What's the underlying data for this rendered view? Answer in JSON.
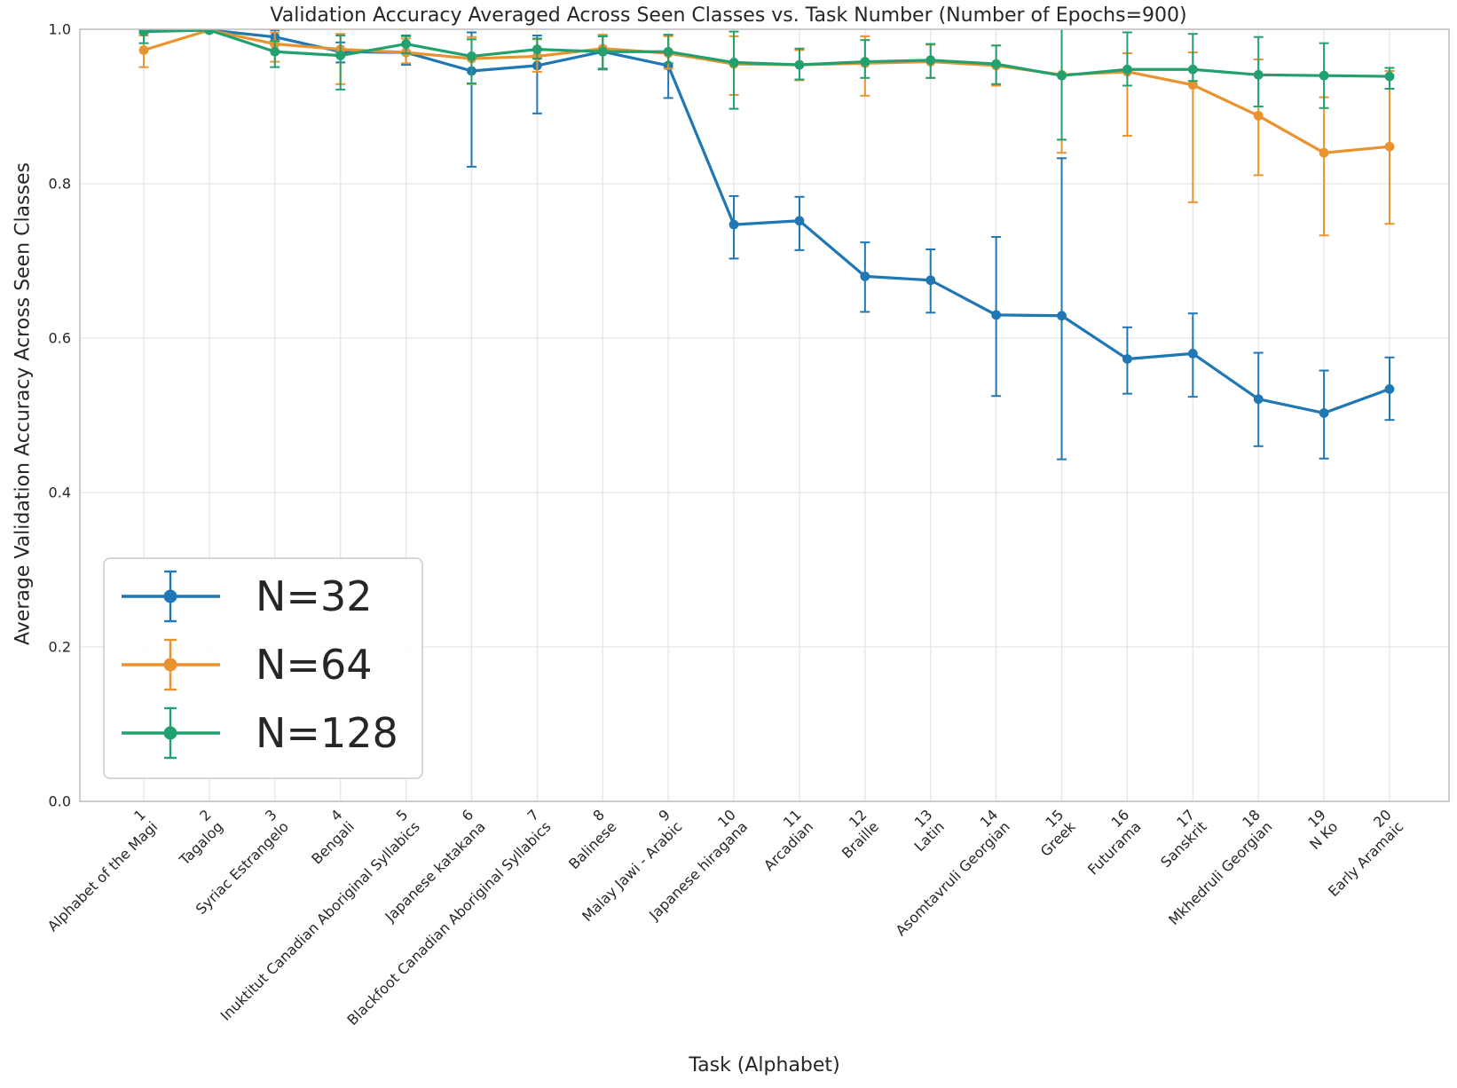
{
  "chart_data": {
    "type": "line",
    "title": "Validation Accuracy Averaged Across Seen Classes vs. Task Number (Number of Epochs=900)",
    "xlabel": "Task (Alphabet)",
    "ylabel": "Average Validation Accuracy Across Seen Classes",
    "ylim": [
      0.0,
      1.0
    ],
    "yticks": [
      0.0,
      0.2,
      0.4,
      0.6,
      0.8,
      1.0
    ],
    "grid": true,
    "legend_position": "lower left",
    "task_numbers": [
      1,
      2,
      3,
      4,
      5,
      6,
      7,
      8,
      9,
      10,
      11,
      12,
      13,
      14,
      15,
      16,
      17,
      18,
      19,
      20
    ],
    "categories": [
      "Alphabet of the Magi",
      "Tagalog",
      "Syriac Estrangelo",
      "Bengali",
      "Inuktitut Canadian Aboriginal Syllabics",
      "Japanese katakana",
      "Blackfoot Canadian Aboriginal Syllabics",
      "Balinese",
      "Malay Jawi - Arabic",
      "Japanese hiragana",
      "Arcadian",
      "Braille",
      "Latin",
      "Asomtavruli Georgian",
      "Greek",
      "Futurama",
      "Sanskrit",
      "Mkhedruli Georgian",
      "N Ko",
      "Early Aramaic"
    ],
    "series": [
      {
        "name": "N=32",
        "color": "#1f77b4",
        "values": [
          0.999,
          0.999,
          0.99,
          0.971,
          0.97,
          0.946,
          0.953,
          0.971,
          0.953,
          0.747,
          0.752,
          0.68,
          0.675,
          0.63,
          0.629,
          0.573,
          0.58,
          0.521,
          0.503,
          0.534
        ],
        "err_lo": [
          0.004,
          0.003,
          0.01,
          0.014,
          0.016,
          0.124,
          0.062,
          0.022,
          0.042,
          0.044,
          0.038,
          0.046,
          0.042,
          0.105,
          0.186,
          0.045,
          0.056,
          0.061,
          0.059,
          0.04
        ],
        "err_hi": [
          0.003,
          0.003,
          0.009,
          0.012,
          0.022,
          0.05,
          0.039,
          0.02,
          0.039,
          0.037,
          0.031,
          0.044,
          0.04,
          0.101,
          0.204,
          0.041,
          0.052,
          0.06,
          0.055,
          0.041
        ]
      },
      {
        "name": "N=64",
        "color": "#e8932d",
        "values": [
          0.973,
          0.999,
          0.981,
          0.974,
          0.97,
          0.962,
          0.965,
          0.975,
          0.969,
          0.955,
          0.954,
          0.956,
          0.958,
          0.953,
          0.941,
          0.945,
          0.928,
          0.888,
          0.84,
          0.848
        ],
        "err_lo": [
          0.022,
          0.003,
          0.023,
          0.045,
          0.014,
          0.033,
          0.02,
          0.027,
          0.02,
          0.04,
          0.02,
          0.042,
          0.021,
          0.026,
          0.101,
          0.083,
          0.152,
          0.077,
          0.107,
          0.1
        ],
        "err_hi": [
          0.019,
          0.003,
          0.015,
          0.02,
          0.018,
          0.028,
          0.022,
          0.018,
          0.022,
          0.036,
          0.019,
          0.035,
          0.022,
          0.026,
          0.064,
          0.024,
          0.042,
          0.073,
          0.072,
          0.098
        ]
      },
      {
        "name": "N=128",
        "color": "#22a06e",
        "values": [
          0.997,
          0.999,
          0.971,
          0.966,
          0.981,
          0.965,
          0.974,
          0.971,
          0.971,
          0.957,
          0.954,
          0.958,
          0.96,
          0.955,
          0.94,
          0.948,
          0.948,
          0.941,
          0.94,
          0.939
        ],
        "err_lo": [
          0.015,
          0.003,
          0.02,
          0.044,
          0.012,
          0.035,
          0.012,
          0.023,
          0.015,
          0.06,
          0.019,
          0.021,
          0.023,
          0.026,
          0.083,
          0.021,
          0.015,
          0.041,
          0.042,
          0.016
        ],
        "err_hi": [
          0.004,
          0.003,
          0.014,
          0.026,
          0.01,
          0.022,
          0.014,
          0.02,
          0.022,
          0.04,
          0.021,
          0.028,
          0.021,
          0.024,
          0.062,
          0.048,
          0.046,
          0.049,
          0.042,
          0.011
        ]
      }
    ],
    "colors": {
      "text": "#262626",
      "grid": "#e6e6e6",
      "spine": "#bdbdbd",
      "legend_border": "#cccccc",
      "background": "#ffffff"
    }
  }
}
